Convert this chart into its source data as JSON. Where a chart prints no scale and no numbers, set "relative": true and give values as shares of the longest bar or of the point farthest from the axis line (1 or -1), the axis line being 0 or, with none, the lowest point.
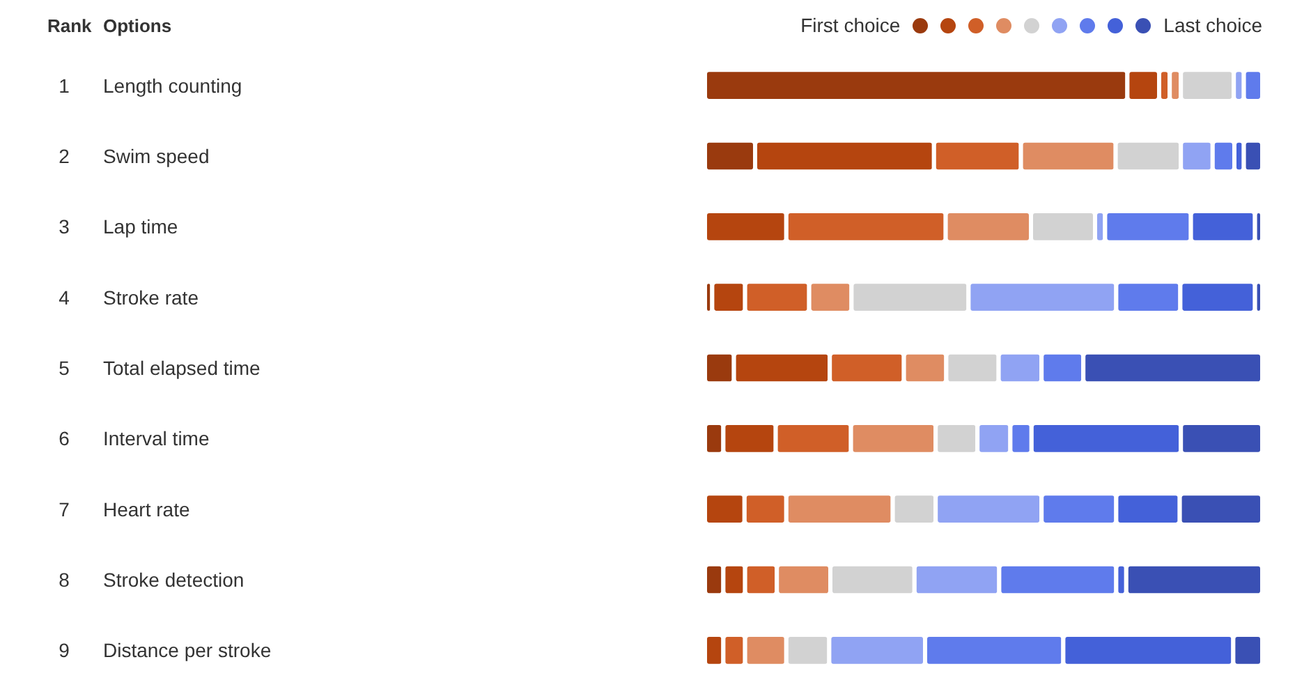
{
  "chart_data": {
    "type": "bar",
    "orientation": "horizontal",
    "stacked": true,
    "relative": true,
    "categories": [
      "Length counting",
      "Swim speed",
      "Lap time",
      "Stroke rate",
      "Total elapsed time",
      "Interval time",
      "Heart rate",
      "Stroke detection",
      "Distance per stroke"
    ],
    "series": [
      {
        "color": "#9a3a0e",
        "values": [
          0.758,
          0.09,
          null,
          0.013,
          0.052,
          0.033,
          null,
          0.033,
          null
        ]
      },
      {
        "color": "#b5450f",
        "values": [
          0.057,
          0.321,
          0.146,
          0.059,
          0.172,
          0.094,
          0.071,
          0.039,
          0.033
        ]
      },
      {
        "color": "#d05f28",
        "values": [
          0.019,
          0.156,
          0.286,
          0.115,
          0.133,
          0.135,
          0.075,
          0.057,
          0.039
        ]
      },
      {
        "color": "#df8c62",
        "values": [
          0.02,
          0.17,
          0.153,
          0.076,
          0.076,
          0.152,
          0.191,
          0.096,
          0.074
        ]
      },
      {
        "color": "#d2d2d2",
        "values": [
          0.095,
          0.117,
          0.115,
          0.21,
          0.094,
          0.075,
          0.077,
          0.151,
          0.077
        ]
      },
      {
        "color": "#90a3f3",
        "values": [
          0.018,
          0.057,
          0.018,
          0.265,
          0.077,
          0.059,
          0.19,
          0.152,
          0.172
        ]
      },
      {
        "color": "#5f7bec",
        "values": [
          0.033,
          0.039,
          0.154,
          0.115,
          0.075,
          0.038,
          0.134,
          0.21,
          0.248
        ]
      },
      {
        "color": "#4461d9",
        "values": [
          null,
          0.017,
          0.115,
          0.134,
          null,
          0.268,
          0.114,
          0.018,
          0.305
        ]
      },
      {
        "color": "#3a50b4",
        "values": [
          null,
          0.033,
          0.013,
          0.013,
          0.321,
          0.146,
          0.148,
          0.244,
          0.052
        ]
      }
    ],
    "annotations": [
      {
        "text": "Rank"
      },
      {
        "text": "Options"
      },
      {
        "text": "First choice"
      },
      {
        "text": "Last choice"
      },
      "1",
      "2",
      "3",
      "4",
      "5",
      "6",
      "7",
      "8",
      "9"
    ]
  }
}
